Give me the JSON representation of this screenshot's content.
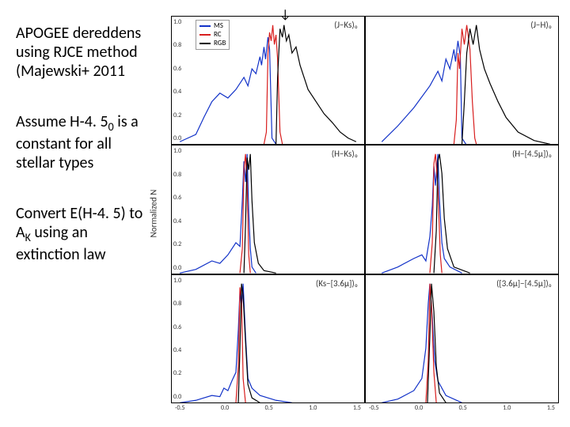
{
  "text": {
    "para1_a": "APOGEE dereddens  using RJCE method (Majewski+ 2011",
    "para2_a": "Assume H-4. 5",
    "para2_b": " is a constant for all stellar types",
    "para3_a": "Convert E(H-4. 5) to A",
    "para3_b": " using an extinction law",
    "sub0": "0",
    "subK": "K",
    "ylabel": "Normalized N"
  },
  "legend": {
    "items": [
      {
        "label": "MS",
        "color": "#1232c8"
      },
      {
        "label": "RC",
        "color": "#d81e1e"
      },
      {
        "label": "RGB",
        "color": "#000000"
      }
    ]
  },
  "colors": {
    "ms": "#1232c8",
    "rc": "#d81e1e",
    "rgb": "#000000",
    "axis": "#000000",
    "bg": "#ffffff"
  },
  "axes": {
    "yticks": [
      "1.0",
      "0.8",
      "0.6",
      "0.4",
      "0.2",
      "0.0"
    ],
    "xticks": [
      "-0.5",
      "0.0",
      "0.5",
      "1.0",
      "1.5"
    ]
  },
  "panels": [
    {
      "title": "(J−Ks)₀",
      "show_legend": true,
      "show_arrow": true,
      "show_yticks": true,
      "series": {
        "ms": [
          [
            -0.7,
            0.02
          ],
          [
            -0.5,
            0.08
          ],
          [
            -0.4,
            0.22
          ],
          [
            -0.3,
            0.35
          ],
          [
            -0.2,
            0.42
          ],
          [
            -0.1,
            0.38
          ],
          [
            0.0,
            0.45
          ],
          [
            0.1,
            0.55
          ],
          [
            0.15,
            0.48
          ],
          [
            0.2,
            0.62
          ],
          [
            0.25,
            0.58
          ],
          [
            0.3,
            0.72
          ],
          [
            0.32,
            0.65
          ],
          [
            0.35,
            0.8
          ],
          [
            0.37,
            0.7
          ],
          [
            0.4,
            0.88
          ],
          [
            0.42,
            0.78
          ],
          [
            0.45,
            0.05
          ],
          [
            0.5,
            0.0
          ]
        ],
        "rc": [
          [
            0.35,
            0.0
          ],
          [
            0.38,
            0.1
          ],
          [
            0.4,
            0.75
          ],
          [
            0.42,
            0.92
          ],
          [
            0.44,
            0.85
          ],
          [
            0.46,
            0.98
          ],
          [
            0.48,
            0.82
          ],
          [
            0.5,
            0.9
          ],
          [
            0.52,
            0.7
          ],
          [
            0.55,
            0.1
          ],
          [
            0.58,
            0.0
          ]
        ],
        "rgb": [
          [
            0.5,
            0.0
          ],
          [
            0.52,
            0.55
          ],
          [
            0.55,
            0.95
          ],
          [
            0.58,
            0.88
          ],
          [
            0.6,
            0.98
          ],
          [
            0.63,
            0.85
          ],
          [
            0.66,
            0.9
          ],
          [
            0.7,
            0.75
          ],
          [
            0.75,
            0.8
          ],
          [
            0.8,
            0.65
          ],
          [
            0.85,
            0.55
          ],
          [
            0.9,
            0.45
          ],
          [
            1.0,
            0.35
          ],
          [
            1.1,
            0.25
          ],
          [
            1.2,
            0.18
          ],
          [
            1.3,
            0.1
          ],
          [
            1.4,
            0.05
          ],
          [
            1.5,
            0.02
          ]
        ]
      }
    },
    {
      "title": "(J−H)₀",
      "series": {
        "ms": [
          [
            -0.6,
            0.02
          ],
          [
            -0.4,
            0.15
          ],
          [
            -0.2,
            0.3
          ],
          [
            0.0,
            0.48
          ],
          [
            0.1,
            0.6
          ],
          [
            0.15,
            0.52
          ],
          [
            0.2,
            0.7
          ],
          [
            0.25,
            0.62
          ],
          [
            0.3,
            0.78
          ],
          [
            0.32,
            0.68
          ],
          [
            0.35,
            0.85
          ],
          [
            0.38,
            0.72
          ],
          [
            0.4,
            0.05
          ],
          [
            0.45,
            0.0
          ]
        ],
        "rc": [
          [
            0.3,
            0.0
          ],
          [
            0.33,
            0.2
          ],
          [
            0.35,
            0.75
          ],
          [
            0.37,
            0.62
          ],
          [
            0.4,
            0.95
          ],
          [
            0.43,
            0.82
          ],
          [
            0.46,
            0.98
          ],
          [
            0.5,
            0.78
          ],
          [
            0.53,
            0.35
          ],
          [
            0.56,
            0.05
          ],
          [
            0.58,
            0.0
          ]
        ],
        "rgb": [
          [
            0.4,
            0.0
          ],
          [
            0.43,
            0.35
          ],
          [
            0.46,
            0.75
          ],
          [
            0.5,
            0.95
          ],
          [
            0.54,
            0.82
          ],
          [
            0.58,
            0.98
          ],
          [
            0.62,
            0.78
          ],
          [
            0.68,
            0.62
          ],
          [
            0.75,
            0.5
          ],
          [
            0.85,
            0.35
          ],
          [
            0.95,
            0.22
          ],
          [
            1.1,
            0.1
          ],
          [
            1.3,
            0.03
          ],
          [
            1.5,
            0.0
          ]
        ]
      }
    },
    {
      "title": "(H−Ks)₀",
      "show_yticks": true,
      "series": {
        "ms": [
          [
            -0.7,
            0.0
          ],
          [
            -0.5,
            0.03
          ],
          [
            -0.3,
            0.1
          ],
          [
            -0.2,
            0.08
          ],
          [
            -0.1,
            0.15
          ],
          [
            0.0,
            0.25
          ],
          [
            0.05,
            0.22
          ],
          [
            0.08,
            0.6
          ],
          [
            0.1,
            0.92
          ],
          [
            0.12,
            0.75
          ],
          [
            0.14,
            0.98
          ],
          [
            0.16,
            0.5
          ],
          [
            0.18,
            0.2
          ],
          [
            0.2,
            0.05
          ],
          [
            0.25,
            0.0
          ]
        ],
        "rc": [
          [
            0.05,
            0.0
          ],
          [
            0.08,
            0.2
          ],
          [
            0.1,
            0.85
          ],
          [
            0.12,
            0.98
          ],
          [
            0.14,
            0.72
          ],
          [
            0.16,
            0.15
          ],
          [
            0.18,
            0.0
          ]
        ],
        "rgb": [
          [
            0.1,
            0.0
          ],
          [
            0.12,
            0.4
          ],
          [
            0.14,
            0.95
          ],
          [
            0.16,
            0.85
          ],
          [
            0.18,
            0.98
          ],
          [
            0.2,
            0.6
          ],
          [
            0.23,
            0.25
          ],
          [
            0.28,
            0.08
          ],
          [
            0.35,
            0.02
          ],
          [
            0.5,
            0.0
          ]
        ]
      }
    },
    {
      "title": "(H−[4.5μ])₀",
      "series": {
        "ms": [
          [
            -0.6,
            0.0
          ],
          [
            -0.4,
            0.05
          ],
          [
            -0.2,
            0.12
          ],
          [
            -0.1,
            0.15
          ],
          [
            -0.05,
            0.1
          ],
          [
            0.0,
            0.3
          ],
          [
            0.03,
            0.55
          ],
          [
            0.05,
            0.88
          ],
          [
            0.07,
            0.72
          ],
          [
            0.1,
            0.98
          ],
          [
            0.12,
            0.6
          ],
          [
            0.15,
            0.25
          ],
          [
            0.18,
            0.12
          ],
          [
            0.25,
            0.05
          ],
          [
            0.4,
            0.0
          ]
        ],
        "rc": [
          [
            0.0,
            0.0
          ],
          [
            0.03,
            0.25
          ],
          [
            0.05,
            0.9
          ],
          [
            0.07,
            0.98
          ],
          [
            0.1,
            0.7
          ],
          [
            0.13,
            0.15
          ],
          [
            0.15,
            0.0
          ]
        ],
        "rgb": [
          [
            0.05,
            0.0
          ],
          [
            0.08,
            0.35
          ],
          [
            0.1,
            0.92
          ],
          [
            0.12,
            0.98
          ],
          [
            0.15,
            0.82
          ],
          [
            0.18,
            0.45
          ],
          [
            0.22,
            0.2
          ],
          [
            0.3,
            0.05
          ],
          [
            0.5,
            0.0
          ]
        ]
      }
    },
    {
      "title": "(Ks−[3.6μ])₀",
      "show_yticks": true,
      "show_xticks": true,
      "series": {
        "ms": [
          [
            -0.7,
            0.0
          ],
          [
            -0.5,
            0.02
          ],
          [
            -0.3,
            0.06
          ],
          [
            -0.2,
            0.05
          ],
          [
            -0.15,
            0.12
          ],
          [
            -0.1,
            0.1
          ],
          [
            -0.05,
            0.18
          ],
          [
            0.0,
            0.25
          ],
          [
            0.03,
            0.6
          ],
          [
            0.05,
            0.92
          ],
          [
            0.07,
            0.78
          ],
          [
            0.09,
            0.98
          ],
          [
            0.12,
            0.55
          ],
          [
            0.15,
            0.2
          ],
          [
            0.2,
            0.12
          ],
          [
            0.3,
            0.06
          ],
          [
            0.5,
            0.02
          ],
          [
            0.7,
            0.0
          ]
        ],
        "rc": [
          [
            0.0,
            0.0
          ],
          [
            0.03,
            0.3
          ],
          [
            0.05,
            0.95
          ],
          [
            0.07,
            0.85
          ],
          [
            0.09,
            0.2
          ],
          [
            0.12,
            0.0
          ]
        ],
        "rgb": [
          [
            0.03,
            0.0
          ],
          [
            0.05,
            0.45
          ],
          [
            0.07,
            0.98
          ],
          [
            0.09,
            0.88
          ],
          [
            0.12,
            0.5
          ],
          [
            0.15,
            0.15
          ],
          [
            0.2,
            0.04
          ],
          [
            0.3,
            0.0
          ]
        ]
      }
    },
    {
      "title": "([3.6μ]−[4.5μ])₀",
      "show_xticks": true,
      "series": {
        "ms": [
          [
            -0.6,
            0.0
          ],
          [
            -0.4,
            0.03
          ],
          [
            -0.2,
            0.1
          ],
          [
            -0.1,
            0.2
          ],
          [
            -0.05,
            0.45
          ],
          [
            -0.02,
            0.82
          ],
          [
            0.0,
            0.98
          ],
          [
            0.03,
            0.7
          ],
          [
            0.06,
            0.35
          ],
          [
            0.1,
            0.18
          ],
          [
            0.2,
            0.06
          ],
          [
            0.4,
            0.0
          ]
        ],
        "rc": [
          [
            -0.05,
            0.0
          ],
          [
            -0.02,
            0.35
          ],
          [
            0.0,
            0.98
          ],
          [
            0.02,
            0.8
          ],
          [
            0.05,
            0.25
          ],
          [
            0.08,
            0.0
          ]
        ],
        "rgb": [
          [
            -0.03,
            0.0
          ],
          [
            0.0,
            0.55
          ],
          [
            0.02,
            0.98
          ],
          [
            0.05,
            0.75
          ],
          [
            0.08,
            0.3
          ],
          [
            0.12,
            0.08
          ],
          [
            0.2,
            0.0
          ]
        ]
      }
    }
  ],
  "plot": {
    "xlim": [
      -0.8,
      1.6
    ],
    "ylim": [
      0.0,
      1.05
    ],
    "line_width": 1.2
  }
}
